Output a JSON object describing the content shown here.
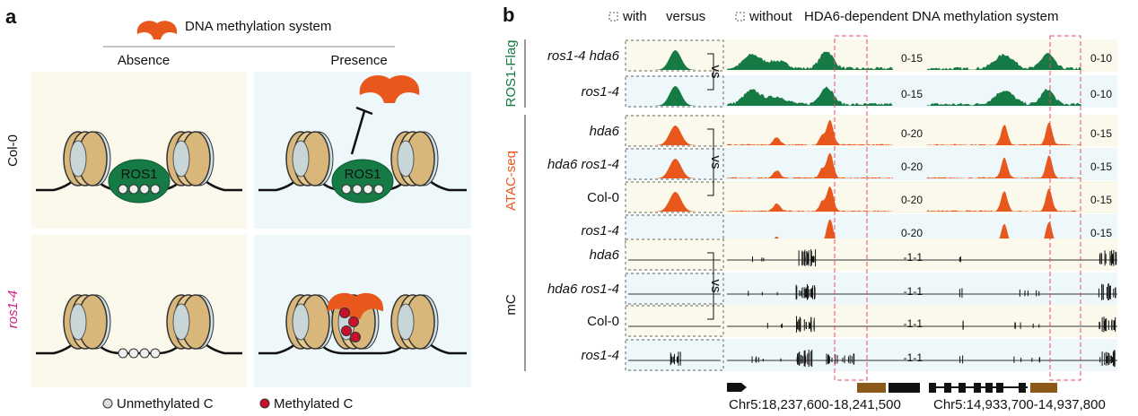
{
  "panel_a": {
    "label": "a",
    "system": "DNA methylation system",
    "columns": [
      "Absence",
      "Presence"
    ],
    "rows": [
      "Col-0",
      "ros1-4"
    ],
    "protein": "ROS1",
    "legend": [
      "Unmethylated C",
      "Methylated C"
    ]
  },
  "panel_b": {
    "label": "b",
    "header": [
      "with",
      "versus",
      "without",
      "HDA6-dependent DNA methylation system"
    ],
    "vs": "vs",
    "groups": [
      {
        "name": "ROS1-Flag",
        "tracks": [
          "ros1-4 hda6",
          "ros1-4"
        ],
        "ranges_1": [
          "0-15",
          "0-15"
        ],
        "ranges_2": [
          "0-10",
          "0-10"
        ]
      },
      {
        "name": "ATAC-seq",
        "tracks": [
          "hda6",
          "hda6 ros1-4",
          "Col-0",
          "ros1-4"
        ],
        "ranges_1": [
          "0-20",
          "0-20",
          "0-20",
          "0-20"
        ],
        "ranges_2": [
          "0-15",
          "0-15",
          "0-15",
          "0-15"
        ]
      },
      {
        "name": "mC",
        "tracks": [
          "hda6",
          "hda6 ros1-4",
          "Col-0",
          "ros1-4"
        ],
        "ranges_1": [
          "-1-1",
          "-1-1",
          "-1-1",
          "-1-1"
        ]
      }
    ],
    "coordinates": [
      "Chr5:18,237,600-18,241,500",
      "Chr5:14,933,700-14,937,800"
    ]
  }
}
